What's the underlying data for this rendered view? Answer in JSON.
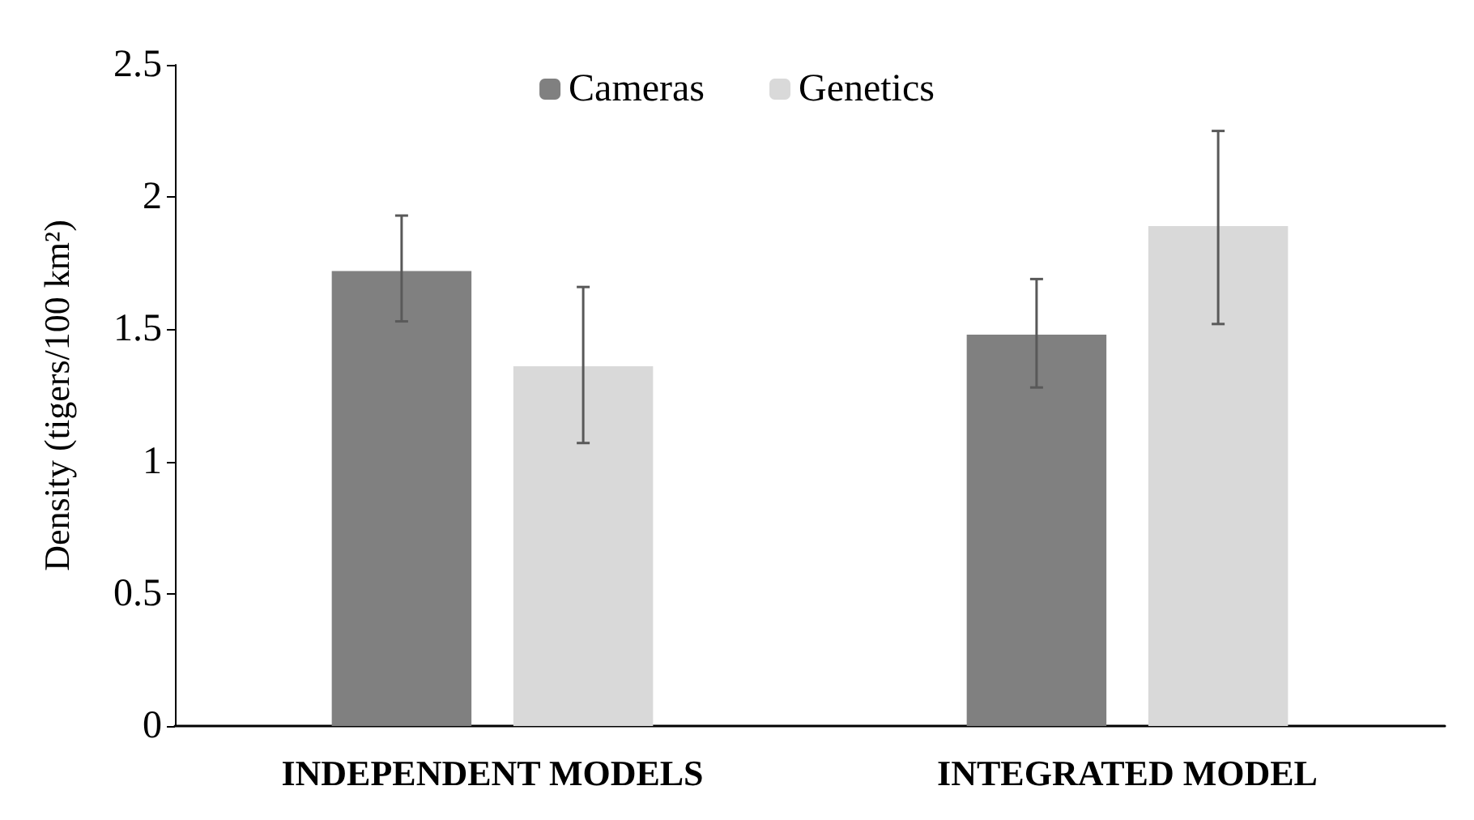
{
  "chart_data": {
    "type": "bar",
    "ylabel": "Density (tigers/100 km²)",
    "categories": [
      "INDEPENDENT MODELS",
      "INTEGRATED MODEL"
    ],
    "series": [
      {
        "name": "Cameras",
        "color": "#808080",
        "values": [
          1.72,
          1.48
        ],
        "errors": [
          [
            1.53,
            1.93
          ],
          [
            1.28,
            1.69
          ]
        ]
      },
      {
        "name": "Genetics",
        "color": "#d9d9d9",
        "values": [
          1.36,
          1.89
        ],
        "errors": [
          [
            1.07,
            1.66
          ],
          [
            1.52,
            2.25
          ]
        ]
      }
    ],
    "ylim": [
      0,
      2.5
    ],
    "yticks": [
      0,
      0.5,
      1,
      1.5,
      2,
      2.5
    ],
    "grid": false,
    "legend": "top"
  }
}
